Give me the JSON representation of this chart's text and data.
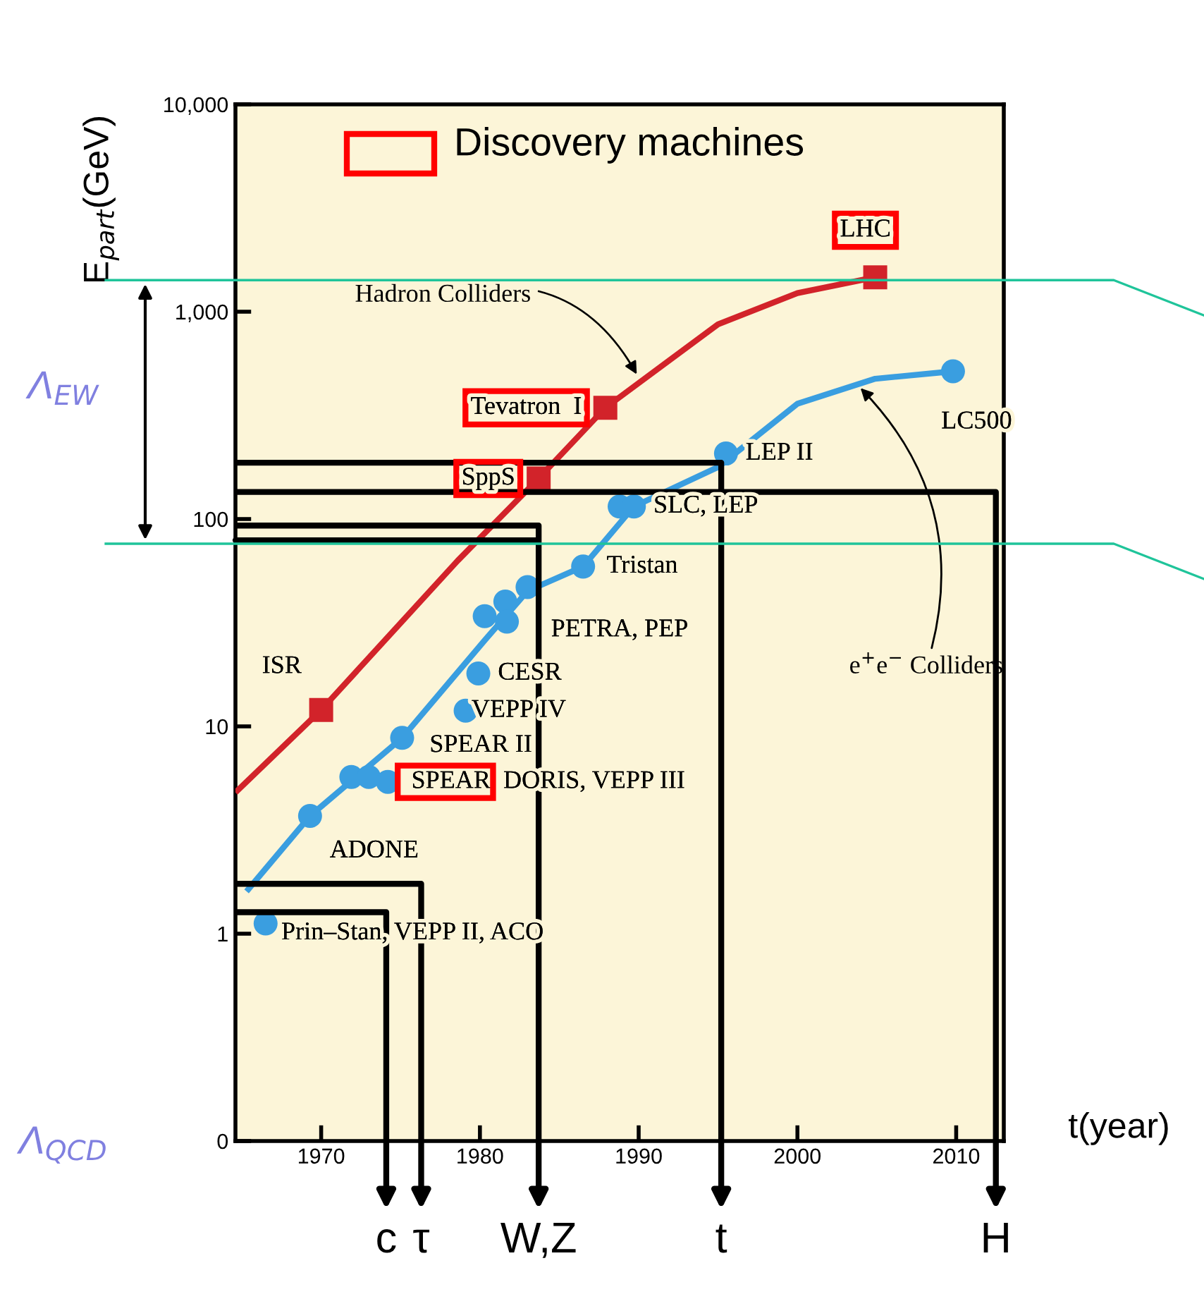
{
  "chart_data": {
    "type": "scatter",
    "xlabel": "t(year)",
    "ylabel": "E$_{part}$(GeV)",
    "xlim": [
      1964.6,
      2013
    ],
    "ylim": [
      0.1,
      10000
    ],
    "log": true,
    "xticks": [
      1970,
      1980,
      1990,
      2000,
      2010
    ],
    "yticks": [
      {
        "value": 0.1,
        "label": "0"
      },
      1,
      10,
      100,
      {
        "value": 1000,
        "label": "1,000"
      },
      {
        "value": 10000,
        "label": "10,000"
      }
    ],
    "grid": false,
    "legend": "bottom",
    "series": [
      {
        "type": "line",
        "color": "#d2232a",
        "x": [
          1964.6,
          1970,
          1978.6,
          1983.7,
          1987.9,
          1995,
          2000,
          2004.9
        ],
        "values": [
          4.8,
          12,
          63,
          157,
          344,
          870,
          1230,
          1466
        ]
      },
      {
        "type": "line",
        "color": "#3a9ee0",
        "x": [
          1965.3,
          1969.3,
          1975.1,
          1980.3,
          1983,
          1986.5,
          1989.7,
          1995,
          2000,
          2004.9,
          2009.8
        ],
        "values": [
          1.6,
          3.7,
          8.8,
          26,
          45,
          59,
          115,
          178,
          360,
          475,
          516
        ]
      },
      {
        "marker": "square",
        "color": "#d2232a",
        "x": [
          1970,
          1983.7,
          1987.9,
          2004.9
        ],
        "values": [
          12,
          157,
          344,
          1466
        ],
        "value_labels": [
          "ISR",
          "SppS",
          "Tevatron  I",
          "LHC"
        ]
      },
      {
        "marker": "circle",
        "color": "#3a9ee0",
        "x": [
          1966.5,
          1969.3,
          1971.9,
          1973.0,
          1974.2,
          1975.1,
          1979.1,
          1979.9,
          1980.3,
          1981.6,
          1981.7,
          1983,
          1986.5,
          1988.8,
          1989.7,
          1995.5,
          2009.8
        ],
        "values": [
          1.12,
          3.7,
          5.7,
          5.7,
          5.4,
          8.8,
          11.9,
          18,
          34,
          40,
          32,
          47,
          59,
          115,
          115,
          207,
          516
        ],
        "value_labels": [
          "Prin–Stan, VEPP II, ACO",
          "ADONE",
          null,
          null,
          "SPEAR, DORIS, VEPP III",
          "SPEAR II",
          "VEPP IV",
          "CESR",
          null,
          null,
          null,
          "PETRA, PEP",
          "Tristan",
          null,
          "SLC, LEP",
          "LEP II",
          "LC500"
        ]
      },
      {
        "name": "c",
        "type": "line",
        "color": "#000000",
        "x": [
          1964.6,
          1974.1,
          1974.1
        ],
        "values": [
          1.27,
          1.27,
          0.1
        ]
      },
      {
        "name": "τ",
        "type": "line",
        "color": "#000000",
        "x": [
          1964.6,
          1976.3,
          1976.3
        ],
        "values": [
          1.74,
          1.74,
          0.1
        ]
      },
      {
        "name": "W,Z",
        "type": "line",
        "color": "#000000",
        "x": [
          1964.6,
          1983.7,
          1983.7,
          1964.6,
          1983.7,
          1983.7
        ],
        "values": [
          93,
          93,
          79,
          79,
          79,
          0.1
        ]
      },
      {
        "name": "t",
        "type": "line",
        "color": "#000000",
        "x": [
          1964.6,
          1995.2,
          1995.2
        ],
        "values": [
          187,
          187,
          0.1
        ]
      },
      {
        "name": "H",
        "type": "line",
        "color": "#000000",
        "x": [
          1964.6,
          2012.5,
          2012.5
        ],
        "values": [
          135,
          135,
          0.1
        ]
      }
    ],
    "ref_lines": [
      {
        "axis": "y",
        "value": 1420,
        "color": "#1fc49a"
      },
      {
        "axis": "y",
        "value": 76,
        "color": "#1fc49a"
      }
    ],
    "annotations": [
      {
        "text": "Hadron Colliders",
        "x": 1990,
        "y": 480
      },
      {
        "text": "e$^{+}$e$^{−}$ Colliders",
        "x": 2003.8,
        "y": 442
      },
      "Discovery machines",
      "Λ$_{EW}$",
      "Λ$_{QCD}$"
    ]
  }
}
